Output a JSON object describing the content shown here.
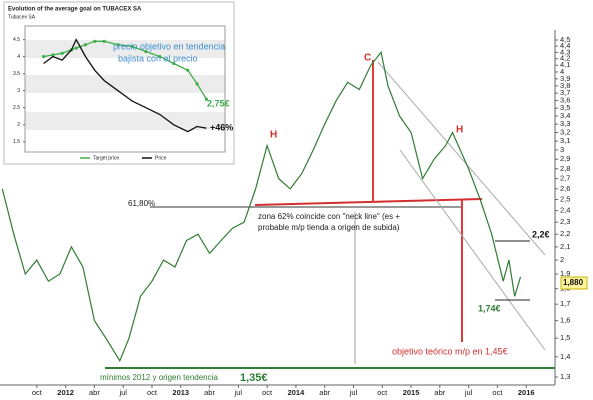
{
  "chart_data": [
    {
      "type": "line",
      "x": [
        2011.45,
        2011.55,
        2011.65,
        2011.75,
        2011.85,
        2011.95,
        2012.05,
        2012.15,
        2012.25,
        2012.35,
        2012.47,
        2012.55,
        2012.65,
        2012.75,
        2012.85,
        2012.95,
        2013.05,
        2013.15,
        2013.25,
        2013.35,
        2013.45,
        2013.55,
        2013.65,
        2013.75,
        2013.85,
        2013.95,
        2014.05,
        2014.15,
        2014.25,
        2014.35,
        2014.45,
        2014.55,
        2014.65,
        2014.74,
        2014.8,
        2014.9,
        2015.0,
        2015.1,
        2015.2,
        2015.3,
        2015.36,
        2015.5,
        2015.6,
        2015.7,
        2015.8,
        2015.85,
        2015.9,
        2015.95
      ],
      "series": [
        {
          "color": "#2f7d32",
          "values": [
            2.6,
            2.2,
            1.9,
            2.0,
            1.85,
            1.9,
            2.1,
            1.95,
            1.6,
            1.5,
            1.38,
            1.5,
            1.75,
            1.85,
            2.0,
            1.95,
            2.15,
            2.2,
            2.05,
            2.15,
            2.25,
            2.3,
            2.6,
            3.05,
            2.7,
            2.6,
            2.75,
            3.0,
            3.3,
            3.6,
            3.85,
            3.75,
            4.1,
            4.3,
            3.8,
            3.4,
            3.2,
            2.7,
            2.9,
            3.05,
            3.2,
            2.8,
            2.5,
            2.2,
            1.85,
            2.0,
            1.75,
            1.88
          ]
        }
      ],
      "xlim": [
        2011.43,
        2016.25
      ],
      "xticks": [
        {
          "value": 2011.75,
          "label": "oct"
        },
        {
          "value": 2012,
          "label": "2012"
        },
        {
          "value": 2012.25,
          "label": "abr"
        },
        {
          "value": 2012.5,
          "label": "jul"
        },
        {
          "value": 2012.75,
          "label": "oct"
        },
        {
          "value": 2013,
          "label": "2013"
        },
        {
          "value": 2013.25,
          "label": "abr"
        },
        {
          "value": 2013.5,
          "label": "jul"
        },
        {
          "value": 2013.75,
          "label": "oct"
        },
        {
          "value": 2014,
          "label": "2014"
        },
        {
          "value": 2014.25,
          "label": "abr"
        },
        {
          "value": 2014.5,
          "label": "jul"
        },
        {
          "value": 2014.75,
          "label": "oct"
        },
        {
          "value": 2015,
          "label": "2015"
        },
        {
          "value": 2015.25,
          "label": "abr"
        },
        {
          "value": 2015.5,
          "label": "jul"
        },
        {
          "value": 2015.75,
          "label": "oct"
        },
        {
          "value": 2016,
          "label": "2016"
        }
      ],
      "ylim": [
        1.3,
        4.5
      ],
      "log_scale": true,
      "yticks": [
        {
          "value": 1.3,
          "label": "1,3"
        },
        {
          "value": 1.4,
          "label": "1,4"
        },
        {
          "value": 1.5,
          "label": "1,5"
        },
        {
          "value": 1.6,
          "label": "1,6"
        },
        {
          "value": 1.7,
          "label": "1,7"
        },
        {
          "value": 1.8,
          "label": "1,8"
        },
        {
          "value": 1.9,
          "label": "1,9"
        },
        {
          "value": 2,
          "label": "2"
        },
        {
          "value": 2.1,
          "label": "2,1"
        },
        {
          "value": 2.2,
          "label": "2,2"
        },
        {
          "value": 2.3,
          "label": "2,3"
        },
        {
          "value": 2.4,
          "label": "2,4"
        },
        {
          "value": 2.5,
          "label": "2,5"
        },
        {
          "value": 2.6,
          "label": "2,6"
        },
        {
          "value": 2.7,
          "label": "2,7"
        },
        {
          "value": 2.8,
          "label": "2,8"
        },
        {
          "value": 2.9,
          "label": "2,9"
        },
        {
          "value": 3,
          "label": "3"
        },
        {
          "value": 3.1,
          "label": "3,1"
        },
        {
          "value": 3.2,
          "label": "3,2"
        },
        {
          "value": 3.3,
          "label": "3,3"
        },
        {
          "value": 3.4,
          "label": "3,4"
        },
        {
          "value": 3.5,
          "label": "3,5"
        },
        {
          "value": 3.6,
          "label": "3,6"
        },
        {
          "value": 3.7,
          "label": "3,7"
        },
        {
          "value": 3.8,
          "label": "3,8"
        },
        {
          "value": 3.9,
          "label": "3,9"
        },
        {
          "value": 4,
          "label": "4"
        },
        {
          "value": 4.1,
          "label": "4,1"
        },
        {
          "value": 4.2,
          "label": "4,2"
        },
        {
          "value": 4.3,
          "label": "4,3"
        },
        {
          "value": 4.4,
          "label": "4,4"
        },
        {
          "value": 4.5,
          "label": "4,5"
        }
      ],
      "annotations": [
        "H",
        "C",
        "H",
        "61,80%",
        "zona 62% coincide con \"neck line\" (es +",
        "probable m/p tienda a origen de subida)",
        "2,2€",
        "1,74€",
        "objetivo teórico m/p en 1,45€",
        "mínimos 2012 y origen tendencia",
        "1,35€",
        "1,880"
      ]
    },
    {
      "type": "line",
      "title": "Evolution of the average goal on TUBACEX SA",
      "subtitle": "Tubacex SA",
      "x": [
        2011.4,
        2011.5,
        2011.6,
        2011.7,
        2011.75,
        2011.85,
        2011.95,
        2012.05,
        2012.2,
        2012.35,
        2012.5,
        2012.65,
        2012.8,
        2012.95,
        2013.05,
        2013.15
      ],
      "series": [
        {
          "name": "Target price",
          "color": "#3fae49",
          "values": [
            4.0,
            4.05,
            4.1,
            4.2,
            4.25,
            4.35,
            4.45,
            4.45,
            4.35,
            4.3,
            4.15,
            4.0,
            3.8,
            3.6,
            3.2,
            2.75
          ]
        },
        {
          "name": "Price",
          "color": "#111111",
          "values": [
            3.8,
            4.0,
            3.9,
            4.2,
            4.5,
            4.0,
            3.6,
            3.3,
            3.0,
            2.7,
            2.5,
            2.3,
            2.0,
            1.8,
            1.95,
            1.9
          ]
        }
      ],
      "xlim": [
        2011.2,
        2013.35
      ],
      "ylim": [
        1.2,
        4.9
      ],
      "yticks": [
        1.5,
        2,
        2.5,
        3,
        3.5,
        4,
        4.5
      ],
      "annotations": [
        "precio objetivo en tendencia",
        "bajista con el precio",
        "2,75€",
        "+46%"
      ]
    }
  ]
}
